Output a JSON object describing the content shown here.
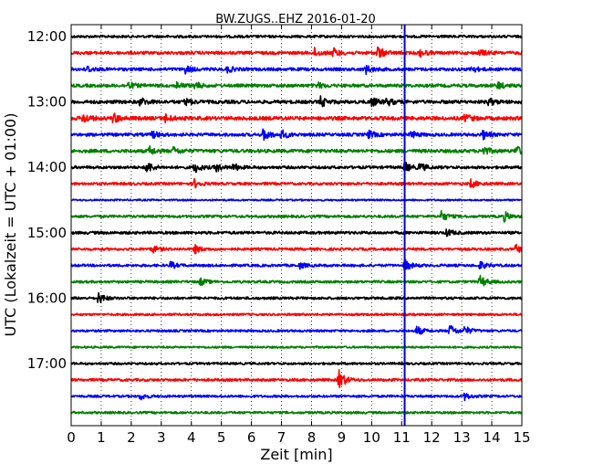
{
  "chart_data": {
    "type": "line",
    "title": "BW.ZUGS..EHZ 2016-01-20",
    "xlabel": "Zeit  [min]",
    "ylabel": "UTC (Lokalzeit = UTC + 01:00)",
    "xlim": [
      0,
      15
    ],
    "x_ticks": [
      "0",
      "1",
      "2",
      "3",
      "4",
      "5",
      "6",
      "7",
      "8",
      "9",
      "10",
      "11",
      "12",
      "13",
      "14",
      "15"
    ],
    "y_ticks": [
      "12:00",
      "13:00",
      "14:00",
      "15:00",
      "16:00",
      "17:00"
    ],
    "grid": "vertical dotted",
    "marker_line": {
      "x": 11.1,
      "color": "#0000cc"
    },
    "trace_colors": [
      "#000000",
      "#ff0000",
      "#0000ff",
      "#008000"
    ],
    "traces": [
      {
        "start": "12:00",
        "noise": 0.18,
        "events": []
      },
      {
        "start": "12:15",
        "noise": 0.22,
        "events": [
          [
            8.1,
            0.6
          ],
          [
            8.7,
            0.7
          ],
          [
            10.2,
            0.9
          ],
          [
            11.6,
            0.5
          ],
          [
            13.6,
            0.4
          ],
          [
            15.0,
            0.5
          ]
        ]
      },
      {
        "start": "12:30",
        "noise": 0.22,
        "events": [
          [
            0.5,
            0.5
          ],
          [
            3.8,
            0.5
          ],
          [
            5.2,
            0.4
          ],
          [
            9.8,
            0.6
          ],
          [
            13.3,
            0.5
          ]
        ]
      },
      {
        "start": "12:45",
        "noise": 0.22,
        "events": [
          [
            1.9,
            0.5
          ],
          [
            3.5,
            0.5
          ],
          [
            4.1,
            0.5
          ],
          [
            8.2,
            0.4
          ],
          [
            14.2,
            0.5
          ]
        ]
      },
      {
        "start": "13:00",
        "noise": 0.24,
        "events": [
          [
            2.3,
            0.6
          ],
          [
            3.8,
            0.5
          ],
          [
            8.3,
            0.7
          ],
          [
            10.0,
            0.6
          ],
          [
            10.5,
            0.5
          ],
          [
            13.9,
            0.5
          ]
        ]
      },
      {
        "start": "13:15",
        "noise": 0.26,
        "events": [
          [
            0.4,
            0.7
          ],
          [
            1.4,
            0.7
          ],
          [
            3.1,
            0.6
          ],
          [
            13.1,
            0.6
          ]
        ]
      },
      {
        "start": "13:30",
        "noise": 0.22,
        "events": [
          [
            2.7,
            0.5
          ],
          [
            6.4,
            0.9
          ],
          [
            7.0,
            0.6
          ],
          [
            9.9,
            0.5
          ],
          [
            11.3,
            0.5
          ],
          [
            13.7,
            0.6
          ]
        ]
      },
      {
        "start": "13:45",
        "noise": 0.24,
        "events": [
          [
            2.6,
            0.6
          ],
          [
            3.4,
            0.5
          ],
          [
            13.7,
            0.7
          ],
          [
            14.8,
            0.7
          ]
        ]
      },
      {
        "start": "14:00",
        "noise": 0.2,
        "events": [
          [
            2.5,
            0.9
          ],
          [
            4.1,
            0.8
          ],
          [
            4.8,
            0.6
          ],
          [
            5.4,
            0.5
          ],
          [
            11.1,
            0.7
          ],
          [
            11.6,
            0.6
          ]
        ]
      },
      {
        "start": "14:15",
        "noise": 0.18,
        "events": [
          [
            4.1,
            0.6
          ],
          [
            13.3,
            0.6
          ]
        ]
      },
      {
        "start": "14:30",
        "noise": 0.12,
        "events": []
      },
      {
        "start": "14:45",
        "noise": 0.18,
        "events": [
          [
            12.3,
            0.8
          ],
          [
            14.4,
            0.7
          ]
        ]
      },
      {
        "start": "15:00",
        "noise": 0.2,
        "events": [
          [
            12.5,
            0.5
          ]
        ]
      },
      {
        "start": "15:15",
        "noise": 0.18,
        "events": [
          [
            2.7,
            0.5
          ],
          [
            4.1,
            0.6
          ],
          [
            14.8,
            0.6
          ]
        ]
      },
      {
        "start": "15:30",
        "noise": 0.18,
        "events": [
          [
            3.3,
            0.5
          ],
          [
            7.6,
            0.4
          ],
          [
            11.1,
            0.8
          ],
          [
            13.6,
            0.6
          ]
        ]
      },
      {
        "start": "15:45",
        "noise": 0.18,
        "events": [
          [
            4.3,
            0.5
          ],
          [
            13.6,
            0.9
          ]
        ]
      },
      {
        "start": "16:00",
        "noise": 0.18,
        "events": [
          [
            0.9,
            0.8
          ]
        ]
      },
      {
        "start": "16:15",
        "noise": 0.16,
        "events": []
      },
      {
        "start": "16:30",
        "noise": 0.16,
        "events": [
          [
            11.5,
            0.7
          ],
          [
            12.6,
            0.9
          ],
          [
            13.1,
            0.6
          ]
        ]
      },
      {
        "start": "16:45",
        "noise": 0.14,
        "events": []
      },
      {
        "start": "17:00",
        "noise": 0.16,
        "events": []
      },
      {
        "start": "17:15",
        "noise": 0.18,
        "events": [
          [
            8.9,
            1.5
          ]
        ]
      },
      {
        "start": "17:30",
        "noise": 0.16,
        "events": [
          [
            2.3,
            0.5
          ],
          [
            13.1,
            0.5
          ]
        ]
      },
      {
        "start": "17:45",
        "noise": 0.16,
        "events": []
      }
    ]
  }
}
